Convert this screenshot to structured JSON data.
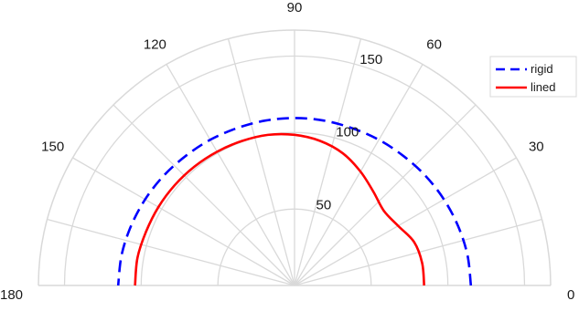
{
  "chart_data": {
    "type": "line",
    "polar": true,
    "half_plane": true,
    "rlim": [
      0,
      167
    ],
    "theta_ticks": [
      0,
      30,
      60,
      90,
      120,
      150,
      180
    ],
    "r_ticks": [
      50,
      100,
      150
    ],
    "grid": true,
    "legend_position": "top-right",
    "colors": {
      "grid": "#d9d9d9",
      "axis_text": "#1a1a1a"
    },
    "series": [
      {
        "name": "rigid",
        "color": "#0000ff",
        "dash": true,
        "theta": [
          0,
          10,
          20,
          30,
          40,
          50,
          60,
          70,
          80,
          90,
          100,
          110,
          120,
          130,
          140,
          150,
          160,
          170,
          180
        ],
        "r": [
          115,
          114.5,
          113.5,
          112.5,
          111.5,
          110.5,
          110,
          109.5,
          109.5,
          109.5,
          109.5,
          109.5,
          110,
          110.5,
          111.5,
          112.5,
          113.5,
          114.5,
          115
        ]
      },
      {
        "name": "lined",
        "color": "#ff0000",
        "dash": false,
        "theta": [
          0,
          10,
          20,
          30,
          40,
          50,
          60,
          70,
          80,
          90,
          100,
          110,
          120,
          130,
          140,
          150,
          160,
          170,
          180
        ],
        "r": [
          84.5,
          84.5,
          83,
          78,
          76,
          80,
          86,
          92,
          96,
          98.5,
          100,
          100.5,
          101,
          101.5,
          102,
          102.5,
          103,
          104,
          104
        ]
      }
    ]
  }
}
